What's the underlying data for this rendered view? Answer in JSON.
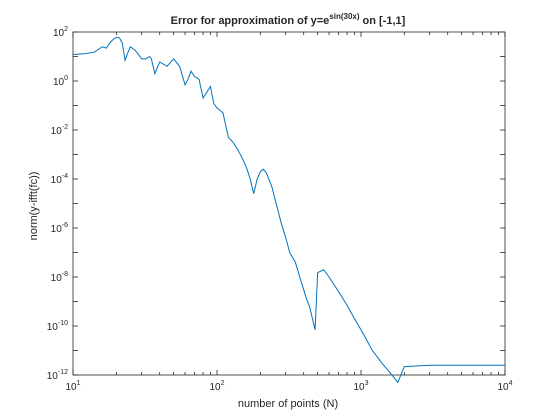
{
  "chart_data": {
    "type": "line",
    "title": {
      "prefix": "Error for approximation of y=e",
      "superscript": "sin(30x)",
      "suffix": " on [-1,1]"
    },
    "xlabel": "number of points (N)",
    "ylabel": "norm(y-ifft(fc))",
    "x_scale": "log",
    "y_scale": "log",
    "xlim": [
      10,
      10000
    ],
    "ylim": [
      1e-12,
      100
    ],
    "grid": false,
    "x_ticks": [
      {
        "value": 10,
        "base": "10",
        "exp": "1"
      },
      {
        "value": 100,
        "base": "10",
        "exp": "2"
      },
      {
        "value": 1000,
        "base": "10",
        "exp": "3"
      },
      {
        "value": 10000,
        "base": "10",
        "exp": "4"
      }
    ],
    "y_ticks": [
      {
        "value": 1e-12,
        "base": "10",
        "exp": "-12"
      },
      {
        "value": 1e-10,
        "base": "10",
        "exp": "-10"
      },
      {
        "value": 1e-08,
        "base": "10",
        "exp": "-8"
      },
      {
        "value": 1e-06,
        "base": "10",
        "exp": "-6"
      },
      {
        "value": 0.0001,
        "base": "10",
        "exp": "-4"
      },
      {
        "value": 0.01,
        "base": "10",
        "exp": "-2"
      },
      {
        "value": 1,
        "base": "10",
        "exp": "0"
      },
      {
        "value": 100,
        "base": "10",
        "exp": "2"
      }
    ],
    "series": [
      {
        "color": "#0072bd",
        "x": [
          10,
          12,
          14,
          16,
          17,
          18,
          19,
          20,
          21,
          22,
          23,
          24,
          25,
          27,
          30,
          32,
          34,
          35,
          37,
          40,
          45,
          50,
          55,
          60,
          63,
          66,
          70,
          75,
          80,
          85,
          90,
          95,
          100,
          110,
          120,
          130,
          140,
          150,
          160,
          170,
          180,
          190,
          200,
          210,
          220,
          240,
          260,
          280,
          300,
          320,
          350,
          380,
          400,
          420,
          440,
          460,
          480,
          500,
          550,
          600,
          700,
          800,
          900,
          1000,
          1200,
          1400,
          1600,
          1800,
          2000,
          3000,
          5000,
          7000,
          10000
        ],
        "y": [
          12,
          13,
          15,
          25,
          22,
          35,
          50,
          60,
          58,
          35,
          7,
          14,
          25,
          18,
          8,
          8,
          10,
          8,
          2,
          6,
          4,
          8,
          4,
          0.7,
          1.2,
          2.5,
          1.5,
          1.2,
          0.2,
          0.35,
          0.6,
          0.12,
          0.08,
          0.05,
          0.005,
          0.003,
          0.0015,
          0.0007,
          0.0003,
          0.0001,
          2.5e-05,
          0.0001,
          0.0002,
          0.00025,
          0.00018,
          5e-05,
          8e-06,
          1.5e-06,
          4e-07,
          1e-07,
          4e-08,
          8e-09,
          3e-09,
          1.2e-09,
          6e-10,
          2e-10,
          7e-11,
          1.5e-08,
          2e-08,
          1e-08,
          2.5e-09,
          7e-10,
          2e-10,
          7e-11,
          1e-11,
          3e-12,
          1.2e-12,
          5e-13,
          2.2e-12,
          2.5e-12,
          2.5e-12,
          2.5e-12,
          2.5e-12
        ]
      }
    ]
  }
}
